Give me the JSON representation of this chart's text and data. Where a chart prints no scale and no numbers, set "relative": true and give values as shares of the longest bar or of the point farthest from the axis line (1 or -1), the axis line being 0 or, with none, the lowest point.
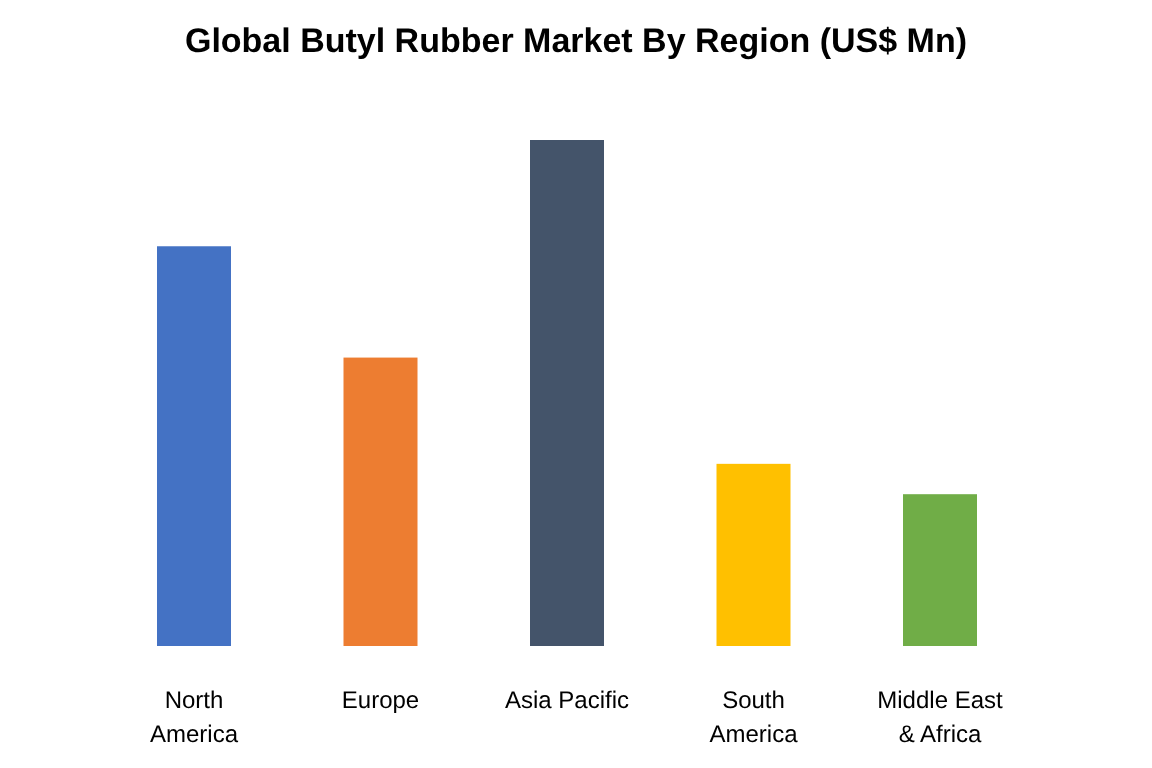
{
  "chart_data": {
    "type": "bar",
    "title": "Global Butyl Rubber Market By Region (US$ Mn)",
    "relative": true,
    "categories": [
      "North America",
      "Europe",
      "Asia Pacific",
      "South America",
      "Middle East & Africa"
    ],
    "values": [
      0.79,
      0.57,
      1,
      0.36,
      0.3
    ],
    "colors": [
      "#4472c4",
      "#ed7d31",
      "#44546a",
      "#ffc000",
      "#70ad47"
    ]
  }
}
